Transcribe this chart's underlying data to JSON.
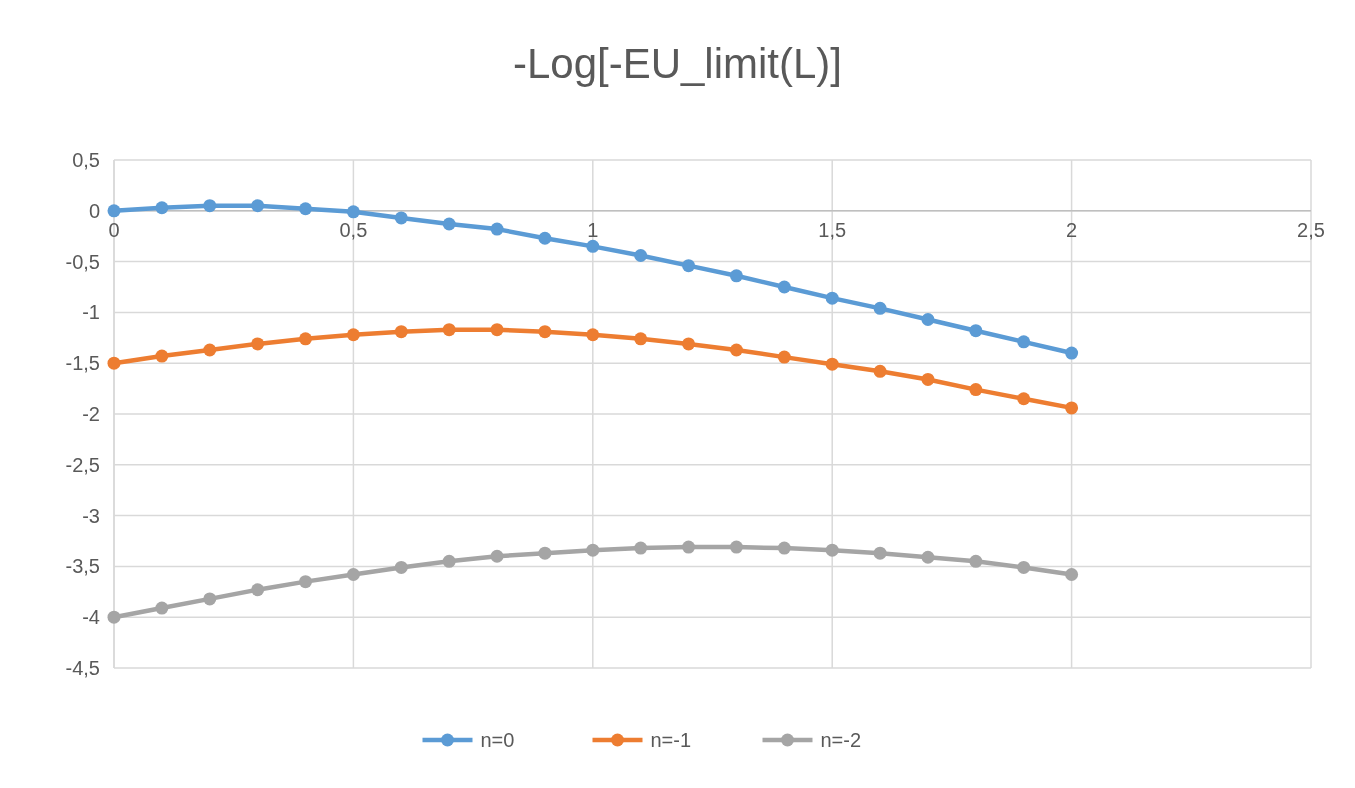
{
  "chart_data": {
    "type": "line",
    "title": "-Log[-EU_limit(L)]",
    "x": [
      0,
      0.1,
      0.2,
      0.3,
      0.4,
      0.5,
      0.6,
      0.7,
      0.8,
      0.9,
      1,
      1.1,
      1.2,
      1.3,
      1.4,
      1.5,
      1.6,
      1.7,
      1.8,
      1.9,
      2
    ],
    "series": [
      {
        "name": "n=0",
        "color": "#5b9bd5",
        "values": [
          0,
          0.03,
          0.05,
          0.05,
          0.02,
          -0.01,
          -0.07,
          -0.13,
          -0.18,
          -0.27,
          -0.35,
          -0.44,
          -0.54,
          -0.64,
          -0.75,
          -0.86,
          -0.96,
          -1.07,
          -1.18,
          -1.29,
          -1.4
        ]
      },
      {
        "name": "n=-1",
        "color": "#ed7d31",
        "values": [
          -1.5,
          -1.43,
          -1.37,
          -1.31,
          -1.26,
          -1.22,
          -1.19,
          -1.17,
          -1.17,
          -1.19,
          -1.22,
          -1.26,
          -1.31,
          -1.37,
          -1.44,
          -1.51,
          -1.58,
          -1.66,
          -1.76,
          -1.85,
          -1.94
        ]
      },
      {
        "name": "n=-2",
        "color": "#a5a5a5",
        "values": [
          -4,
          -3.91,
          -3.82,
          -3.73,
          -3.65,
          -3.58,
          -3.51,
          -3.45,
          -3.4,
          -3.37,
          -3.34,
          -3.32,
          -3.31,
          -3.31,
          -3.32,
          -3.34,
          -3.37,
          -3.41,
          -3.45,
          -3.51,
          -3.58
        ]
      }
    ],
    "xlim": [
      0,
      2.5
    ],
    "xticks": [
      0,
      {
        "value": 0.5,
        "label": "0,5"
      },
      1,
      {
        "value": 1.5,
        "label": "1,5"
      },
      2,
      {
        "value": 2.5,
        "label": "2,5"
      }
    ],
    "ylim": [
      -4.5,
      0.5
    ],
    "yticks": [
      {
        "value": -4.5,
        "label": "-4,5"
      },
      -4,
      {
        "value": -3.5,
        "label": "-3,5"
      },
      -3,
      {
        "value": -2.5,
        "label": "-2,5"
      },
      -2,
      {
        "value": -1.5,
        "label": "-1,5"
      },
      -1,
      {
        "value": -0.5,
        "label": "-0,5"
      },
      0,
      {
        "value": 0.5,
        "label": "0,5"
      }
    ],
    "grid": true,
    "legend": "bottom",
    "marker": "circle",
    "line_style": "solid"
  }
}
